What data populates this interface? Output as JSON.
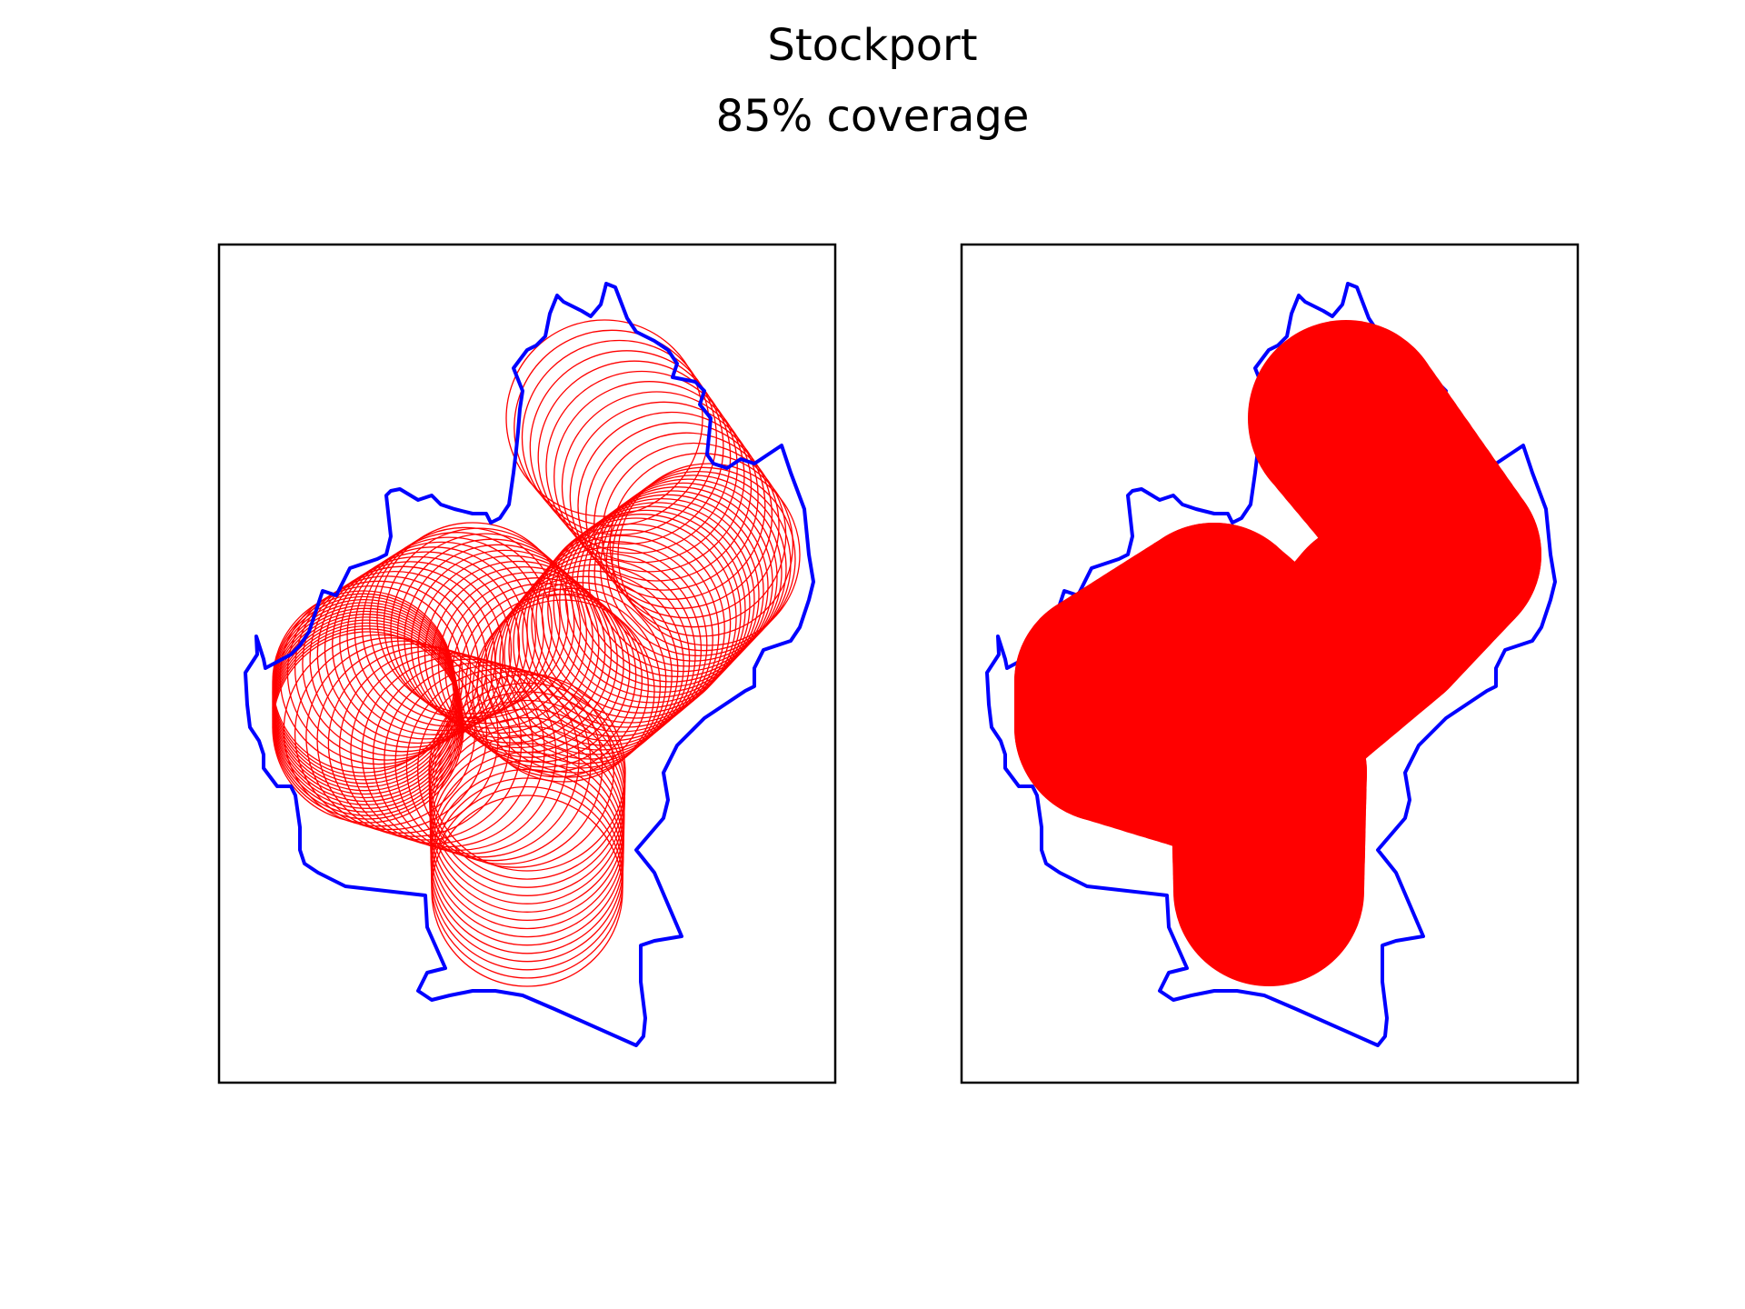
{
  "figure": {
    "title": "Stockport",
    "subtitle": "85% coverage"
  },
  "colors": {
    "boundary": "#0000ff",
    "coverage": "#ff0000",
    "frame": "#000000",
    "background": "#ffffff"
  },
  "panels": [
    {
      "id": "left",
      "content": "overlapping circle outlines along path",
      "style": "outline"
    },
    {
      "id": "right",
      "content": "filled coverage circles",
      "style": "filled"
    }
  ]
}
